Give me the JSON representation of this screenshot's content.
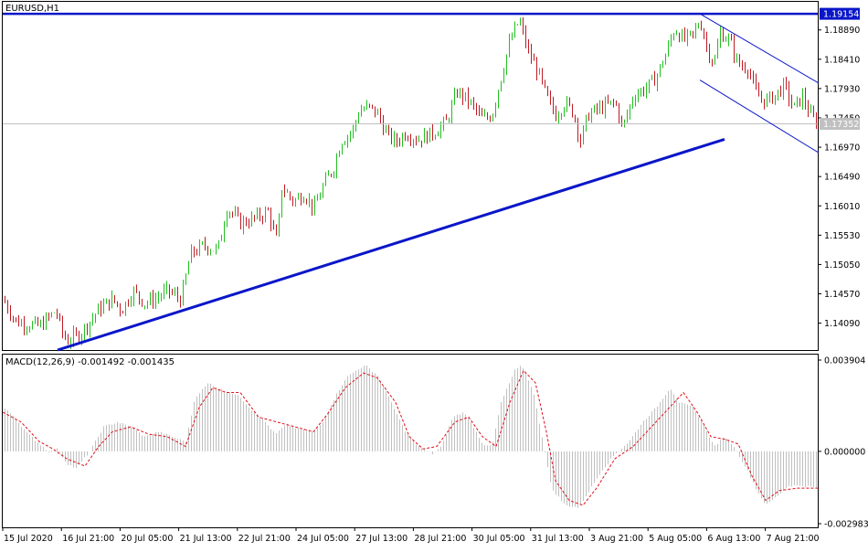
{
  "chart_data": [
    {
      "type": "candlestick",
      "title": "EURUSD,H1",
      "symbol": "EURUSD",
      "timeframe": "H1",
      "ylim": [
        1.1365,
        1.1935
      ],
      "yticks": [
        "1.18890",
        "1.18410",
        "1.17930",
        "1.17450",
        "1.16970",
        "1.16490",
        "1.16010",
        "1.15530",
        "1.15050",
        "1.14570",
        "1.14090"
      ],
      "ytick_values": [
        1.1889,
        1.1841,
        1.1793,
        1.1745,
        1.1697,
        1.1649,
        1.1601,
        1.1553,
        1.1505,
        1.1457,
        1.1409
      ],
      "current_price": {
        "label": "1.17352",
        "value": 1.17352,
        "color": "#c0c0c0"
      },
      "horizontal_line": {
        "label": "1.19154",
        "value": 1.19154,
        "color": "#0a16c8"
      },
      "colors": {
        "bull": "#21c021",
        "bear": "#c01a24",
        "trendline": "#0a16c8"
      },
      "grid": false,
      "series": [
        {
          "name": "",
          "close_path": [
            [
              0,
              1.1448
            ],
            [
              14,
              1.1412
            ],
            [
              25,
              1.1408
            ],
            [
              40,
              1.1404
            ],
            [
              50,
              1.1418
            ],
            [
              58,
              1.143
            ],
            [
              64,
              1.1395
            ],
            [
              70,
              1.138
            ],
            [
              85,
              1.1392
            ],
            [
              95,
              1.1412
            ],
            [
              105,
              1.1432
            ],
            [
              120,
              1.1448
            ],
            [
              130,
              1.143
            ],
            [
              142,
              1.1462
            ],
            [
              155,
              1.1442
            ],
            [
              165,
              1.1448
            ],
            [
              180,
              1.1462
            ],
            [
              195,
              1.1448
            ],
            [
              205,
              1.1522
            ],
            [
              220,
              1.1536
            ],
            [
              235,
              1.1528
            ],
            [
              245,
              1.1598
            ],
            [
              260,
              1.1573
            ],
            [
              275,
              1.158
            ],
            [
              290,
              1.1592
            ],
            [
              300,
              1.154
            ],
            [
              305,
              1.1632
            ],
            [
              318,
              1.1608
            ],
            [
              330,
              1.1622
            ],
            [
              340,
              1.1595
            ],
            [
              350,
              1.1632
            ],
            [
              362,
              1.1665
            ],
            [
              370,
              1.1708
            ],
            [
              382,
              1.1722
            ],
            [
              390,
              1.1758
            ],
            [
              400,
              1.1762
            ],
            [
              410,
              1.1752
            ],
            [
              420,
              1.1718
            ],
            [
              430,
              1.1705
            ],
            [
              440,
              1.172
            ],
            [
              455,
              1.171
            ],
            [
              470,
              1.172
            ],
            [
              485,
              1.1738
            ],
            [
              497,
              1.1788
            ],
            [
              510,
              1.1772
            ],
            [
              525,
              1.1742
            ],
            [
              535,
              1.175
            ],
            [
              545,
              1.1812
            ],
            [
              555,
              1.1872
            ],
            [
              565,
              1.1905
            ],
            [
              575,
              1.1852
            ],
            [
              585,
              1.1822
            ],
            [
              595,
              1.1778
            ],
            [
              605,
              1.175
            ],
            [
              615,
              1.177
            ],
            [
              625,
              1.1752
            ],
            [
              632,
              1.1706
            ],
            [
              640,
              1.175
            ],
            [
              655,
              1.1762
            ],
            [
              670,
              1.177
            ],
            [
              678,
              1.1728
            ],
            [
              690,
              1.1782
            ],
            [
              705,
              1.1795
            ],
            [
              715,
              1.1812
            ],
            [
              725,
              1.1848
            ],
            [
              735,
              1.1892
            ],
            [
              745,
              1.1872
            ],
            [
              755,
              1.188
            ],
            [
              763,
              1.1905
            ],
            [
              770,
              1.1862
            ],
            [
              778,
              1.1832
            ],
            [
              785,
              1.1885
            ],
            [
              795,
              1.1872
            ],
            [
              805,
              1.1832
            ],
            [
              815,
              1.1828
            ],
            [
              825,
              1.1782
            ],
            [
              835,
              1.1772
            ],
            [
              845,
              1.1782
            ],
            [
              855,
              1.1798
            ],
            [
              865,
              1.176
            ],
            [
              875,
              1.178
            ],
            [
              885,
              1.1745
            ],
            [
              895,
              1.1735
            ]
          ]
        }
      ],
      "trendlines": [
        {
          "from": [
            60,
            1.1365
          ],
          "to": [
            790,
            1.171
          ],
          "width": "thick"
        },
        {
          "from": [
            763,
            1.19154
          ],
          "to": [
            893,
            1.1802
          ],
          "width": "thin"
        },
        {
          "from": [
            763,
            1.1807
          ],
          "to": [
            893,
            1.1688
          ],
          "width": "thin"
        }
      ],
      "xlabels": [
        "15 Jul 2020",
        "16 Jul 21:00",
        "20 Jul 05:00",
        "21 Jul 13:00",
        "22 Jul 21:00",
        "24 Jul 05:00",
        "27 Jul 13:00",
        "28 Jul 21:00",
        "30 Jul 05:00",
        "31 Jul 13:00",
        "3 Aug 21:00",
        "5 Aug 05:00",
        "6 Aug 13:00",
        "7 Aug 21:00"
      ]
    },
    {
      "type": "histogram+line",
      "title": "MACD(12,26,9) -0.001492 -0.001435",
      "indicator": "MACD(12,26,9)",
      "main_value": -0.001492,
      "signal_value": -0.001435,
      "ylim": [
        -0.0031,
        0.00395
      ],
      "yticks": [
        "0.003904",
        "0.000000",
        "-0.002983"
      ],
      "ytick_values": [
        0.003904,
        0.0,
        -0.002983
      ],
      "colors": {
        "histogram": "#c0c0c0",
        "signal": "#e0101a"
      },
      "main_path": [
        [
          0,
          0.0018
        ],
        [
          10,
          0.0015
        ],
        [
          25,
          0.0008
        ],
        [
          40,
          0.0003
        ],
        [
          50,
          0.0
        ],
        [
          60,
          0.0001
        ],
        [
          70,
          -0.0005
        ],
        [
          80,
          -0.0007
        ],
        [
          95,
          0.0
        ],
        [
          110,
          0.001
        ],
        [
          125,
          0.0012
        ],
        [
          140,
          0.001
        ],
        [
          155,
          0.0006
        ],
        [
          170,
          0.0008
        ],
        [
          185,
          0.0006
        ],
        [
          200,
          0.0004
        ],
        [
          210,
          0.0022
        ],
        [
          225,
          0.0028
        ],
        [
          240,
          0.0025
        ],
        [
          250,
          0.0024
        ],
        [
          260,
          0.0022
        ],
        [
          272,
          0.0017
        ],
        [
          285,
          0.0013
        ],
        [
          298,
          0.0007
        ],
        [
          310,
          0.0011
        ],
        [
          325,
          0.0009
        ],
        [
          340,
          0.0008
        ],
        [
          350,
          0.0012
        ],
        [
          360,
          0.002
        ],
        [
          375,
          0.003
        ],
        [
          390,
          0.0034
        ],
        [
          397,
          0.0035
        ],
        [
          410,
          0.0031
        ],
        [
          425,
          0.002
        ],
        [
          440,
          0.0008
        ],
        [
          455,
          0.0002
        ],
        [
          470,
          -0.0001
        ],
        [
          480,
          0.0002
        ],
        [
          492,
          0.0014
        ],
        [
          505,
          0.0016
        ],
        [
          515,
          0.001
        ],
        [
          525,
          0.0003
        ],
        [
          535,
          0.0002
        ],
        [
          545,
          0.002
        ],
        [
          560,
          0.0033
        ],
        [
          568,
          0.0035
        ],
        [
          580,
          0.0025
        ],
        [
          592,
          0.0002
        ],
        [
          600,
          -0.0015
        ],
        [
          615,
          -0.0022
        ],
        [
          630,
          -0.0023
        ],
        [
          640,
          -0.0017
        ],
        [
          655,
          -0.0008
        ],
        [
          670,
          -0.0001
        ],
        [
          685,
          0.0004
        ],
        [
          700,
          0.0012
        ],
        [
          715,
          0.0018
        ],
        [
          730,
          0.0026
        ],
        [
          740,
          0.002
        ],
        [
          755,
          0.0018
        ],
        [
          768,
          0.001
        ],
        [
          778,
          0.0002
        ],
        [
          790,
          0.0006
        ],
        [
          800,
          0.0002
        ],
        [
          815,
          -0.0008
        ],
        [
          825,
          -0.0016
        ],
        [
          835,
          -0.0022
        ],
        [
          845,
          -0.0019
        ],
        [
          860,
          -0.0014
        ],
        [
          875,
          -0.0014
        ],
        [
          893,
          -0.0015
        ]
      ],
      "signal_path": [
        [
          0,
          0.0016
        ],
        [
          20,
          0.0012
        ],
        [
          40,
          0.0004
        ],
        [
          55,
          0.0001
        ],
        [
          70,
          -0.0003
        ],
        [
          90,
          -0.0006
        ],
        [
          105,
          0.0002
        ],
        [
          120,
          0.0008
        ],
        [
          140,
          0.001
        ],
        [
          160,
          0.0007
        ],
        [
          180,
          0.0006
        ],
        [
          200,
          0.0002
        ],
        [
          215,
          0.0018
        ],
        [
          230,
          0.0026
        ],
        [
          245,
          0.0024
        ],
        [
          260,
          0.0024
        ],
        [
          280,
          0.0014
        ],
        [
          300,
          0.0012
        ],
        [
          320,
          0.001
        ],
        [
          340,
          0.0008
        ],
        [
          355,
          0.0015
        ],
        [
          375,
          0.0026
        ],
        [
          395,
          0.0032
        ],
        [
          410,
          0.003
        ],
        [
          430,
          0.002
        ],
        [
          445,
          0.0006
        ],
        [
          460,
          0.0001
        ],
        [
          475,
          0.0002
        ],
        [
          495,
          0.0012
        ],
        [
          510,
          0.0014
        ],
        [
          525,
          0.0006
        ],
        [
          540,
          0.0002
        ],
        [
          555,
          0.002
        ],
        [
          570,
          0.0033
        ],
        [
          583,
          0.0028
        ],
        [
          595,
          0.0008
        ],
        [
          605,
          -0.0012
        ],
        [
          620,
          -0.002
        ],
        [
          635,
          -0.0022
        ],
        [
          650,
          -0.0015
        ],
        [
          670,
          -0.0003
        ],
        [
          690,
          0.0002
        ],
        [
          710,
          0.001
        ],
        [
          730,
          0.0018
        ],
        [
          745,
          0.0024
        ],
        [
          760,
          0.0016
        ],
        [
          775,
          0.0006
        ],
        [
          790,
          0.0005
        ],
        [
          805,
          0.0003
        ],
        [
          820,
          -0.001
        ],
        [
          835,
          -0.002
        ],
        [
          850,
          -0.0016
        ],
        [
          870,
          -0.0015
        ],
        [
          893,
          -0.0015
        ]
      ]
    }
  ]
}
